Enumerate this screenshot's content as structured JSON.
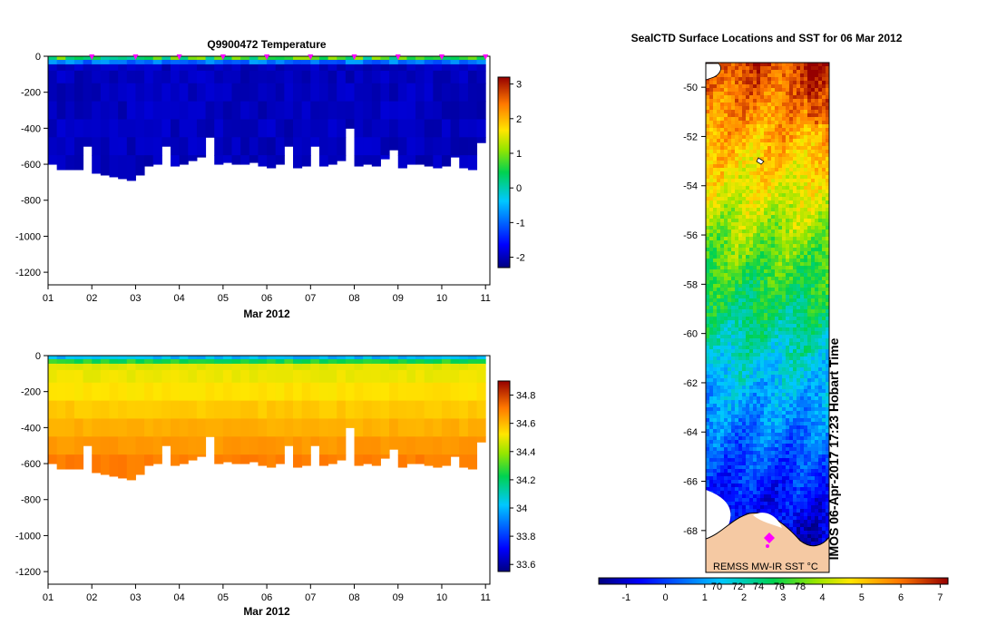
{
  "chart_data": [
    {
      "type": "heatmap",
      "title": "Q9900472  Temperature",
      "xlabel": "Mar 2012",
      "ylabel": "",
      "x_ticks": [
        "01",
        "02",
        "03",
        "04",
        "05",
        "06",
        "07",
        "08",
        "09",
        "10",
        "11"
      ],
      "y_ticks": [
        0,
        -200,
        -400,
        -600,
        -800,
        -1000,
        -1200
      ],
      "ylim": [
        -1270,
        0
      ],
      "xlim": [
        1,
        11.1
      ],
      "colorbar": {
        "ticks": [
          3,
          2,
          1,
          0,
          -1,
          -2
        ],
        "range": [
          -2.3,
          3.2
        ]
      },
      "profile_times": [
        1.0,
        1.2,
        1.4,
        1.6,
        1.8,
        2.0,
        2.2,
        2.4,
        2.6,
        2.8,
        3.0,
        3.2,
        3.4,
        3.6,
        3.8,
        4.0,
        4.2,
        4.4,
        4.6,
        4.8,
        5.0,
        5.2,
        5.4,
        5.6,
        5.8,
        6.0,
        6.2,
        6.4,
        6.6,
        6.8,
        7.0,
        7.2,
        7.4,
        7.6,
        7.8,
        8.0,
        8.2,
        8.4,
        8.6,
        8.8,
        9.0,
        9.2,
        9.4,
        9.6,
        9.8,
        10.0,
        10.2,
        10.4,
        10.6,
        10.8,
        11.0
      ],
      "profile_max_depth": [
        600,
        630,
        630,
        630,
        500,
        650,
        660,
        670,
        680,
        690,
        660,
        610,
        600,
        500,
        610,
        600,
        580,
        560,
        450,
        600,
        590,
        600,
        600,
        590,
        610,
        620,
        600,
        500,
        620,
        610,
        500,
        610,
        600,
        580,
        400,
        610,
        600,
        610,
        570,
        520,
        620,
        600,
        600,
        610,
        620,
        610,
        560,
        620,
        630,
        480,
        620
      ],
      "surface_marker_days": [
        2,
        3,
        4,
        5,
        6,
        7,
        8,
        9,
        10,
        11
      ],
      "value_range": [
        -2.1,
        1.2
      ]
    },
    {
      "type": "heatmap",
      "title": "",
      "xlabel": "Mar 2012",
      "ylabel": "",
      "x_ticks": [
        "01",
        "02",
        "03",
        "04",
        "05",
        "06",
        "07",
        "08",
        "09",
        "10",
        "11"
      ],
      "y_ticks": [
        0,
        -200,
        -400,
        -600,
        -800,
        -1000,
        -1200
      ],
      "ylim": [
        -1270,
        0
      ],
      "xlim": [
        1,
        11.1
      ],
      "colorbar": {
        "ticks": [
          34.8,
          34.6,
          34.4,
          34.2,
          34,
          33.8,
          33.6
        ],
        "range": [
          33.55,
          34.9
        ]
      },
      "value_range": [
        33.8,
        34.75
      ]
    },
    {
      "type": "heatmap",
      "title": "SealCTD Surface Locations and SST for 06 Mar 2012",
      "xlabel": "",
      "ylabel": "",
      "y_ticks": [
        -50,
        -52,
        -54,
        -56,
        -58,
        -60,
        -62,
        -64,
        -66,
        -68
      ],
      "ylim": [
        -69.7,
        -49.0
      ],
      "colorbar": {
        "ticks": [
          -1,
          0,
          1,
          2,
          3,
          4,
          5,
          6,
          7
        ],
        "range": [
          -1.7,
          7.2
        ]
      },
      "overlapping_tick_labels": [
        "70",
        "72",
        "74",
        "76",
        "78"
      ],
      "source_label": "REMSS MW-IR SST °C",
      "credit": "IMOS 06-Apr-2017 17:23 Hobart Time",
      "seal_position": {
        "lat": -68.3
      }
    }
  ],
  "colors": {
    "dark_blue": "#000a80",
    "marker": "#ff00ff",
    "land": "#f5c9a3"
  }
}
